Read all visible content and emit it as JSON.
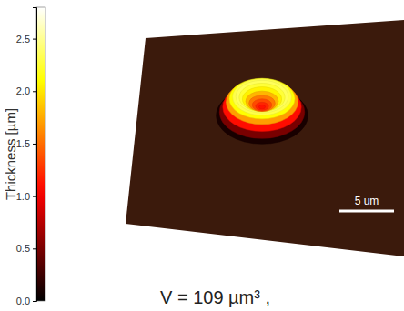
{
  "chart_data": {
    "type": "surface",
    "profile": {
      "radius": [
        4.2,
        3.9,
        3.6,
        3.3,
        3.0,
        2.7,
        2.4,
        2.1,
        1.8,
        1.5,
        1.2,
        0.9,
        0.6,
        0.3,
        0.0
      ],
      "thickness": [
        0.1,
        0.5,
        1.1,
        1.7,
        2.1,
        2.3,
        2.35,
        2.25,
        2.05,
        1.8,
        1.55,
        1.35,
        1.2,
        1.12,
        1.1
      ]
    },
    "colorbar": {
      "label": "Thickness [µm]",
      "range": [
        0,
        2.8
      ],
      "ticks": [
        {
          "value": 0,
          "label": "0.0"
        },
        {
          "value": 0.5,
          "label": "0.5"
        },
        {
          "value": 1,
          "label": "1.0"
        },
        {
          "value": 1.5,
          "label": "1.5"
        },
        {
          "value": 2,
          "label": "2.0"
        },
        {
          "value": 2.5,
          "label": "2.5"
        }
      ]
    },
    "scale_bar": {
      "length": 5,
      "label": "5 um"
    },
    "annotations": [
      "V = 109 µm³ ,"
    ]
  }
}
